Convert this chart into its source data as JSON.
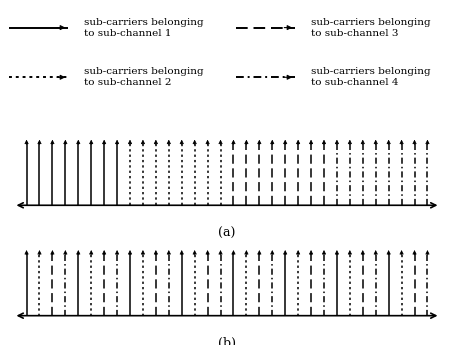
{
  "n_carriers": 32,
  "line_styles_keys": [
    "solid",
    "dotted",
    "dashed",
    "dashdot"
  ],
  "legend_entries": [
    "sub-carriers belonging\nto sub-channel 1",
    "sub-carriers belonging\nto sub-channel 2",
    "sub-carriers belonging\nto sub-channel 3",
    "sub-carriers belonging\nto sub-channel 4"
  ],
  "label_a": "(a)",
  "label_b": "(b)",
  "bg_color": "#ffffff",
  "font_size_legend": 7.5,
  "font_size_label": 9
}
